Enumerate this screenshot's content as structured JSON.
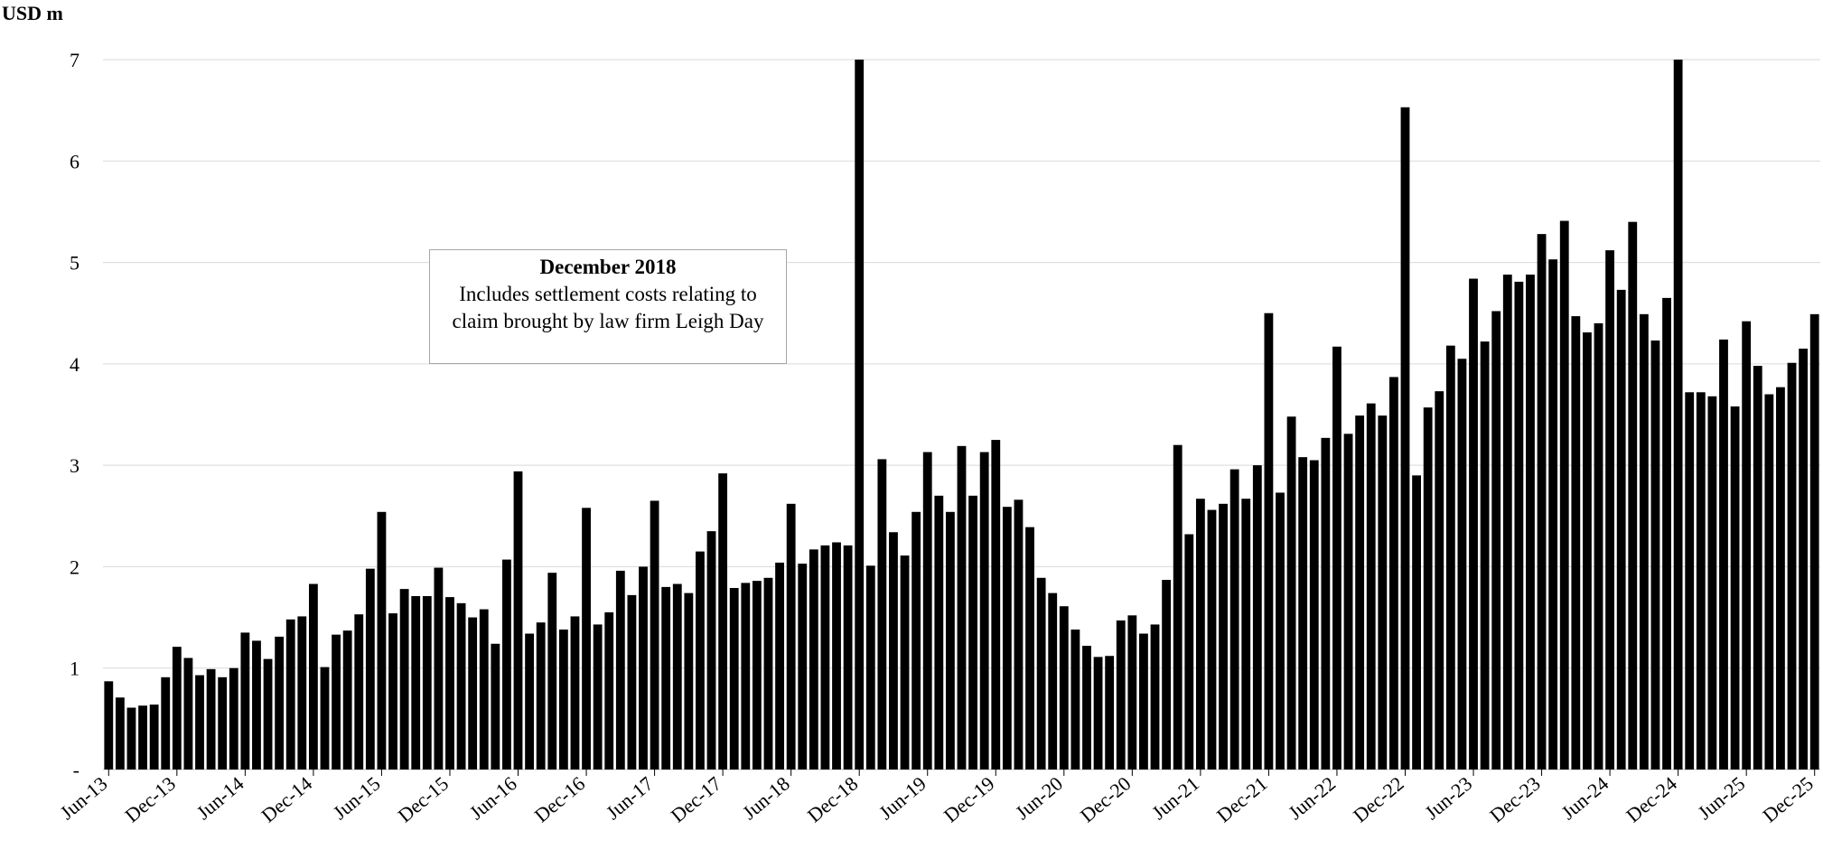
{
  "chart_data": {
    "type": "bar",
    "ylabel": "USD m",
    "ylim": [
      0,
      7
    ],
    "yticks": [
      {
        "value": 0,
        "label": "-"
      },
      {
        "value": 1,
        "label": "1"
      },
      {
        "value": 2,
        "label": "2"
      },
      {
        "value": 3,
        "label": "3"
      },
      {
        "value": 4,
        "label": "4"
      },
      {
        "value": 5,
        "label": "5"
      },
      {
        "value": 6,
        "label": "6"
      },
      {
        "value": 7,
        "label": "7"
      }
    ],
    "grid": true,
    "bar_color": "#000000",
    "grid_color": "#d9d9d9",
    "categories": [
      "Jun-13",
      "Jul-13",
      "Aug-13",
      "Sep-13",
      "Oct-13",
      "Nov-13",
      "Dec-13",
      "Jan-14",
      "Feb-14",
      "Mar-14",
      "Apr-14",
      "May-14",
      "Jun-14",
      "Jul-14",
      "Aug-14",
      "Sep-14",
      "Oct-14",
      "Nov-14",
      "Dec-14",
      "Jan-15",
      "Feb-15",
      "Mar-15",
      "Apr-15",
      "May-15",
      "Jun-15",
      "Jul-15",
      "Aug-15",
      "Sep-15",
      "Oct-15",
      "Nov-15",
      "Dec-15",
      "Jan-16",
      "Feb-16",
      "Mar-16",
      "Apr-16",
      "May-16",
      "Jun-16",
      "Jul-16",
      "Aug-16",
      "Sep-16",
      "Oct-16",
      "Nov-16",
      "Dec-16",
      "Jan-17",
      "Feb-17",
      "Mar-17",
      "Apr-17",
      "May-17",
      "Jun-17",
      "Jul-17",
      "Aug-17",
      "Sep-17",
      "Oct-17",
      "Nov-17",
      "Dec-17",
      "Jan-18",
      "Feb-18",
      "Mar-18",
      "Apr-18",
      "May-18",
      "Jun-18",
      "Jul-18",
      "Aug-18",
      "Sep-18",
      "Oct-18",
      "Nov-18",
      "Dec-18",
      "Jan-19",
      "Feb-19",
      "Mar-19",
      "Apr-19",
      "May-19",
      "Jun-19",
      "Jul-19",
      "Aug-19",
      "Sep-19",
      "Oct-19",
      "Nov-19",
      "Dec-19",
      "Jan-20",
      "Feb-20",
      "Mar-20",
      "Apr-20",
      "May-20",
      "Jun-20",
      "Jul-20",
      "Aug-20",
      "Sep-20",
      "Oct-20",
      "Nov-20",
      "Dec-20",
      "Jan-21",
      "Feb-21",
      "Mar-21",
      "Apr-21",
      "May-21",
      "Jun-21",
      "Jul-21",
      "Aug-21",
      "Sep-21",
      "Oct-21",
      "Nov-21",
      "Dec-21",
      "Jan-22",
      "Feb-22",
      "Mar-22",
      "Apr-22",
      "May-22",
      "Jun-22",
      "Jul-22",
      "Aug-22",
      "Sep-22",
      "Oct-22",
      "Nov-22",
      "Dec-22",
      "Jan-23",
      "Feb-23",
      "Mar-23",
      "Apr-23",
      "May-23",
      "Jun-23",
      "Jul-23",
      "Aug-23",
      "Sep-23",
      "Oct-23",
      "Nov-23",
      "Dec-23",
      "Jan-24",
      "Feb-24",
      "Mar-24",
      "Apr-24",
      "May-24",
      "Jun-24",
      "Jul-24",
      "Aug-24",
      "Sep-24",
      "Oct-24",
      "Nov-24",
      "Dec-24",
      "Jan-25",
      "Feb-25",
      "Mar-25",
      "Apr-25",
      "May-25",
      "Jun-25",
      "Jul-25",
      "Aug-25",
      "Sep-25",
      "Oct-25",
      "Nov-25",
      "Dec-25"
    ],
    "values": [
      0.87,
      0.71,
      0.61,
      0.63,
      0.64,
      0.91,
      1.21,
      1.1,
      0.93,
      0.99,
      0.91,
      1.0,
      1.35,
      1.27,
      1.09,
      1.31,
      1.48,
      1.51,
      1.83,
      1.01,
      1.33,
      1.37,
      1.53,
      1.98,
      2.54,
      1.54,
      1.78,
      1.71,
      1.71,
      1.99,
      1.7,
      1.64,
      1.5,
      1.58,
      1.24,
      2.07,
      2.94,
      1.34,
      1.45,
      1.94,
      1.38,
      1.51,
      2.58,
      1.43,
      1.55,
      1.96,
      1.72,
      2.0,
      2.65,
      1.8,
      1.83,
      1.74,
      2.15,
      2.35,
      2.92,
      1.79,
      1.84,
      1.86,
      1.89,
      2.04,
      2.62,
      2.03,
      2.17,
      2.21,
      2.24,
      2.21,
      7.0,
      2.01,
      3.06,
      2.34,
      2.11,
      2.54,
      3.13,
      2.7,
      2.54,
      3.19,
      2.7,
      3.13,
      3.25,
      2.59,
      2.66,
      2.39,
      1.89,
      1.74,
      1.61,
      1.38,
      1.22,
      1.11,
      1.12,
      1.47,
      1.52,
      1.34,
      1.43,
      1.87,
      3.2,
      2.32,
      2.67,
      2.56,
      2.62,
      2.96,
      2.67,
      3.0,
      4.5,
      2.73,
      3.48,
      3.08,
      3.05,
      3.27,
      4.17,
      3.31,
      3.49,
      3.61,
      3.49,
      3.87,
      6.53,
      2.9,
      3.57,
      3.73,
      4.18,
      4.05,
      4.84,
      4.22,
      4.52,
      4.88,
      4.81,
      4.88,
      5.28,
      5.03,
      5.41,
      4.47,
      4.31,
      4.4,
      5.12,
      4.73,
      5.4,
      4.49,
      4.23,
      4.65,
      7.0,
      3.72,
      3.72,
      3.68,
      4.24,
      3.58,
      4.42,
      3.98,
      3.7,
      3.77,
      4.01,
      4.15,
      4.49
    ],
    "xtick_labels": [
      "Jun-13",
      "Dec-13",
      "Jun-14",
      "Dec-14",
      "Jun-15",
      "Dec-15",
      "Jun-16",
      "Dec-16",
      "Jun-17",
      "Dec-17",
      "Jun-18",
      "Dec-18",
      "Jun-19",
      "Dec-19",
      "Jun-20",
      "Dec-20",
      "Jun-21",
      "Dec-21",
      "Jun-22",
      "Dec-22",
      "Jun-23",
      "Dec-23",
      "Jun-24",
      "Dec-24",
      "Jun-25",
      "Dec-25"
    ],
    "annotation": {
      "title": "December 2018",
      "line1": "Includes settlement costs relating to",
      "line2": "claim brought by law firm Leigh Day"
    }
  }
}
